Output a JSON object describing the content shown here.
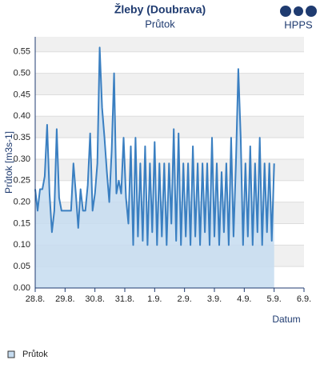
{
  "chart_data": {
    "type": "area",
    "title": "Žleby (Doubrava)",
    "subtitle": "Průtok",
    "brand": "HPPS",
    "x_label": "Datum",
    "y_label": "Průtok [m3s-1]",
    "grid": true,
    "legend": "bottom-left",
    "xlim": [
      0,
      9
    ],
    "ylim": [
      0,
      0.585
    ],
    "xticks": [
      {
        "value": 0,
        "label": "28.8."
      },
      {
        "value": 1,
        "label": "29.8."
      },
      {
        "value": 2,
        "label": "30.8."
      },
      {
        "value": 3,
        "label": "31.8."
      },
      {
        "value": 4,
        "label": "1.9."
      },
      {
        "value": 5,
        "label": "2.9."
      },
      {
        "value": 6,
        "label": "3.9."
      },
      {
        "value": 7,
        "label": "4.9."
      },
      {
        "value": 8,
        "label": "5.9."
      },
      {
        "value": 9,
        "label": "6.9."
      }
    ],
    "yticks": [
      {
        "value": 0,
        "label": "0.00"
      },
      {
        "value": 0.05,
        "label": "0.05"
      },
      {
        "value": 0.1,
        "label": "0.10"
      },
      {
        "value": 0.15,
        "label": "0.15"
      },
      {
        "value": 0.2,
        "label": "0.20"
      },
      {
        "value": 0.25,
        "label": "0.25"
      },
      {
        "value": 0.3,
        "label": "0.30"
      },
      {
        "value": 0.35,
        "label": "0.35"
      },
      {
        "value": 0.4,
        "label": "0.40"
      },
      {
        "value": 0.45,
        "label": "0.45"
      },
      {
        "value": 0.5,
        "label": "0.50"
      },
      {
        "value": 0.55,
        "label": "0.55"
      }
    ],
    "x": [
      0,
      0.08,
      0.16,
      0.24,
      0.32,
      0.4,
      0.48,
      0.56,
      0.64,
      0.72,
      0.8,
      0.88,
      0.96,
      1.04,
      1.12,
      1.2,
      1.28,
      1.36,
      1.44,
      1.52,
      1.6,
      1.68,
      1.76,
      1.84,
      1.92,
      2,
      2.08,
      2.16,
      2.24,
      2.32,
      2.4,
      2.48,
      2.56,
      2.64,
      2.72,
      2.8,
      2.88,
      2.96,
      3.04,
      3.12,
      3.2,
      3.28,
      3.36,
      3.44,
      3.52,
      3.6,
      3.68,
      3.76,
      3.84,
      3.92,
      4,
      4.08,
      4.16,
      4.24,
      4.32,
      4.4,
      4.48,
      4.56,
      4.64,
      4.72,
      4.8,
      4.88,
      4.96,
      5.04,
      5.12,
      5.2,
      5.28,
      5.36,
      5.44,
      5.52,
      5.6,
      5.68,
      5.76,
      5.84,
      5.92,
      6,
      6.08,
      6.16,
      6.24,
      6.32,
      6.4,
      6.48,
      6.56,
      6.64,
      6.72,
      6.8,
      6.88,
      6.96,
      7.04,
      7.12,
      7.2,
      7.28,
      7.36,
      7.44,
      7.52,
      7.6,
      7.68,
      7.76,
      7.84,
      7.92,
      8
    ],
    "series": [
      {
        "name": "Průtok",
        "color": "#3a7fc1",
        "fill": "#c6dcf0",
        "values": [
          0.23,
          0.18,
          0.23,
          0.23,
          0.26,
          0.38,
          0.22,
          0.13,
          0.18,
          0.37,
          0.21,
          0.18,
          0.18,
          0.18,
          0.18,
          0.18,
          0.29,
          0.22,
          0.14,
          0.23,
          0.18,
          0.18,
          0.24,
          0.36,
          0.18,
          0.22,
          0.29,
          0.56,
          0.42,
          0.35,
          0.27,
          0.2,
          0.32,
          0.5,
          0.22,
          0.25,
          0.22,
          0.35,
          0.21,
          0.15,
          0.33,
          0.1,
          0.35,
          0.12,
          0.29,
          0.11,
          0.33,
          0.1,
          0.29,
          0.13,
          0.34,
          0.1,
          0.29,
          0.12,
          0.29,
          0.1,
          0.29,
          0.15,
          0.37,
          0.11,
          0.36,
          0.1,
          0.29,
          0.12,
          0.29,
          0.1,
          0.33,
          0.12,
          0.29,
          0.1,
          0.29,
          0.13,
          0.29,
          0.1,
          0.35,
          0.12,
          0.29,
          0.1,
          0.27,
          0.13,
          0.29,
          0.1,
          0.35,
          0.12,
          0.29,
          0.51,
          0.35,
          0.1,
          0.29,
          0.12,
          0.33,
          0.1,
          0.29,
          0.13,
          0.35,
          0.1,
          0.29,
          0.13,
          0.29,
          0.11,
          0.29
        ]
      }
    ]
  }
}
